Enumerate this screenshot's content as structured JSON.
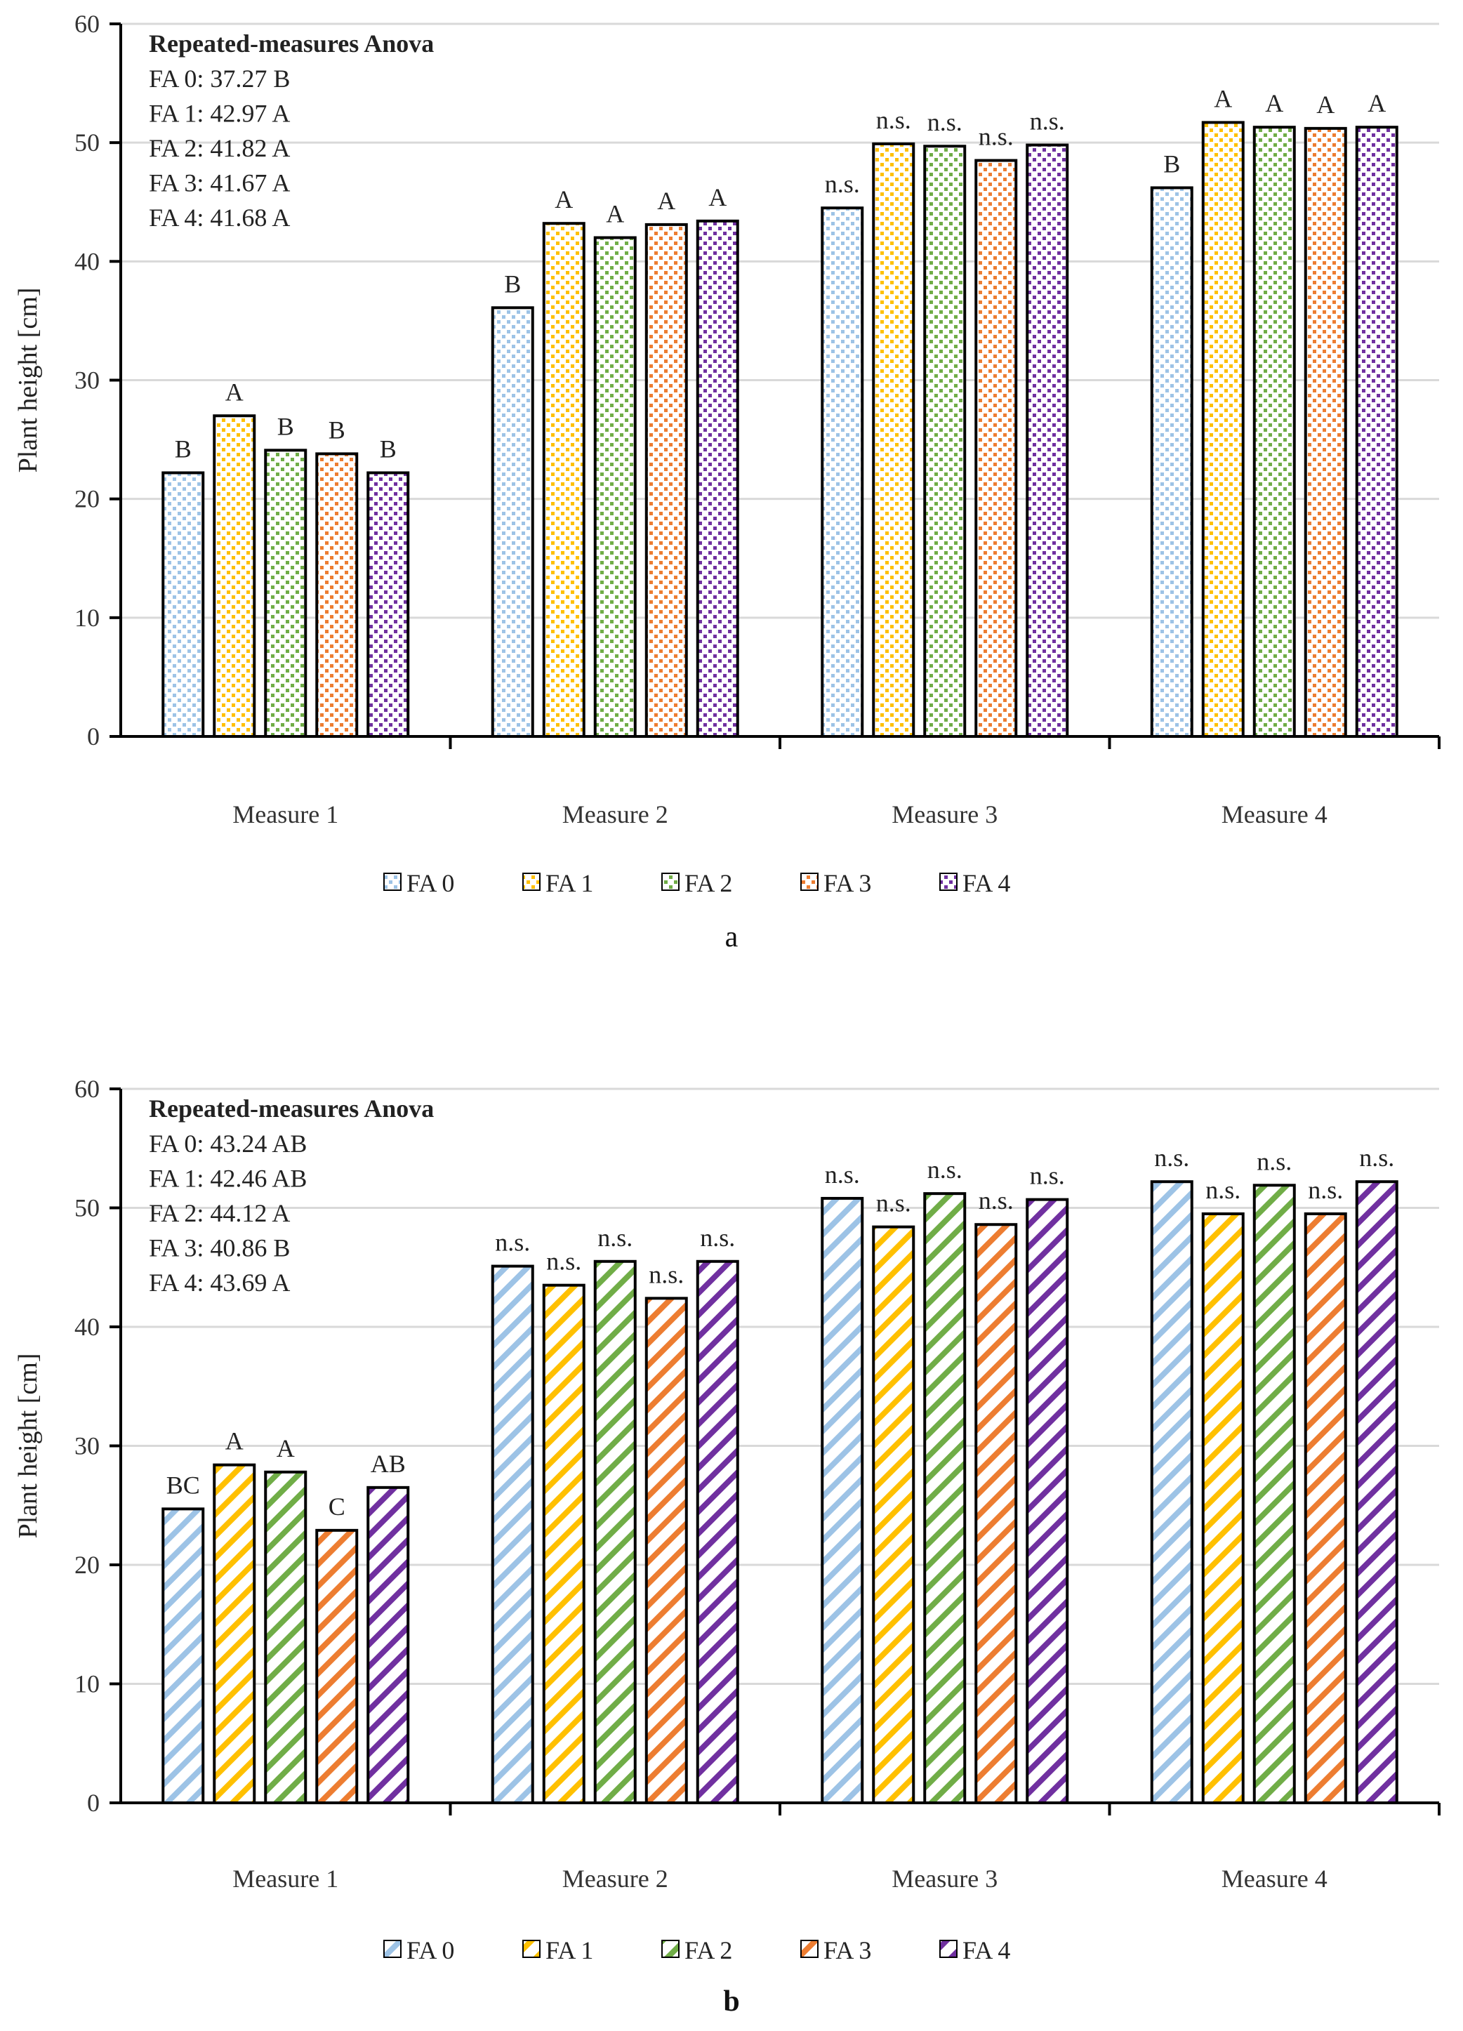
{
  "colors": {
    "FA 0": "#9DC3E6",
    "FA 1": "#FFC000",
    "FA 2": "#70AD47",
    "FA 3": "#ED7D31",
    "FA 4": "#7030A0"
  },
  "chart_data": [
    {
      "type": "bar",
      "caption": "a",
      "pattern": "dots",
      "ylabel": "Plant height [cm]",
      "ylim": [
        0,
        60
      ],
      "yticks": [
        0,
        10,
        20,
        30,
        40,
        50,
        60
      ],
      "grid": true,
      "legend_position": "bottom",
      "categories": [
        "Measure 1",
        "Measure 2",
        "Measure 3",
        "Measure 4"
      ],
      "series": [
        {
          "name": "FA 0",
          "values": [
            22.2,
            36.1,
            44.5,
            46.2
          ],
          "labels": [
            "B",
            "B",
            "n.s.",
            "B"
          ]
        },
        {
          "name": "FA 1",
          "values": [
            27.0,
            43.2,
            49.9,
            51.7
          ],
          "labels": [
            "A",
            "A",
            "n.s.",
            "A"
          ]
        },
        {
          "name": "FA 2",
          "values": [
            24.1,
            42.0,
            49.7,
            51.3
          ],
          "labels": [
            "B",
            "A",
            "n.s.",
            "A"
          ]
        },
        {
          "name": "FA 3",
          "values": [
            23.8,
            43.1,
            48.5,
            51.2
          ],
          "labels": [
            "B",
            "A",
            "n.s.",
            "A"
          ]
        },
        {
          "name": "FA 4",
          "values": [
            22.2,
            43.4,
            49.8,
            51.3
          ],
          "labels": [
            "B",
            "A",
            "n.s.",
            "A"
          ]
        }
      ],
      "annotation": {
        "title": "Repeated-measures Anova",
        "lines": [
          "FA 0: 37.27 B",
          "FA 1: 42.97 A",
          "FA 2: 41.82 A",
          "FA 3: 41.67 A",
          "FA 4: 41.68 A"
        ]
      }
    },
    {
      "type": "bar",
      "caption": "b",
      "pattern": "stripes",
      "ylabel": "Plant height [cm]",
      "ylim": [
        0,
        60
      ],
      "yticks": [
        0,
        10,
        20,
        30,
        40,
        50,
        60
      ],
      "grid": true,
      "legend_position": "bottom",
      "categories": [
        "Measure 1",
        "Measure 2",
        "Measure 3",
        "Measure 4"
      ],
      "series": [
        {
          "name": "FA 0",
          "values": [
            24.7,
            45.1,
            50.8,
            52.2
          ],
          "labels": [
            "BC",
            "n.s.",
            "n.s.",
            "n.s."
          ]
        },
        {
          "name": "FA 1",
          "values": [
            28.4,
            43.5,
            48.4,
            49.5
          ],
          "labels": [
            "A",
            "n.s.",
            "n.s.",
            "n.s."
          ]
        },
        {
          "name": "FA 2",
          "values": [
            27.8,
            45.5,
            51.2,
            51.9
          ],
          "labels": [
            "A",
            "n.s.",
            "n.s.",
            "n.s."
          ]
        },
        {
          "name": "FA 3",
          "values": [
            22.9,
            42.4,
            48.6,
            49.5
          ],
          "labels": [
            "C",
            "n.s.",
            "n.s.",
            "n.s."
          ]
        },
        {
          "name": "FA 4",
          "values": [
            26.5,
            45.5,
            50.7,
            52.2
          ],
          "labels": [
            "AB",
            "n.s.",
            "n.s.",
            "n.s."
          ]
        }
      ],
      "annotation": {
        "title": "Repeated-measures Anova",
        "lines": [
          "FA 0: 43.24 AB",
          "FA 1: 42.46 AB",
          "FA 2: 44.12 A",
          "FA 3: 40.86 B",
          "FA 4: 43.69 A"
        ]
      }
    }
  ]
}
